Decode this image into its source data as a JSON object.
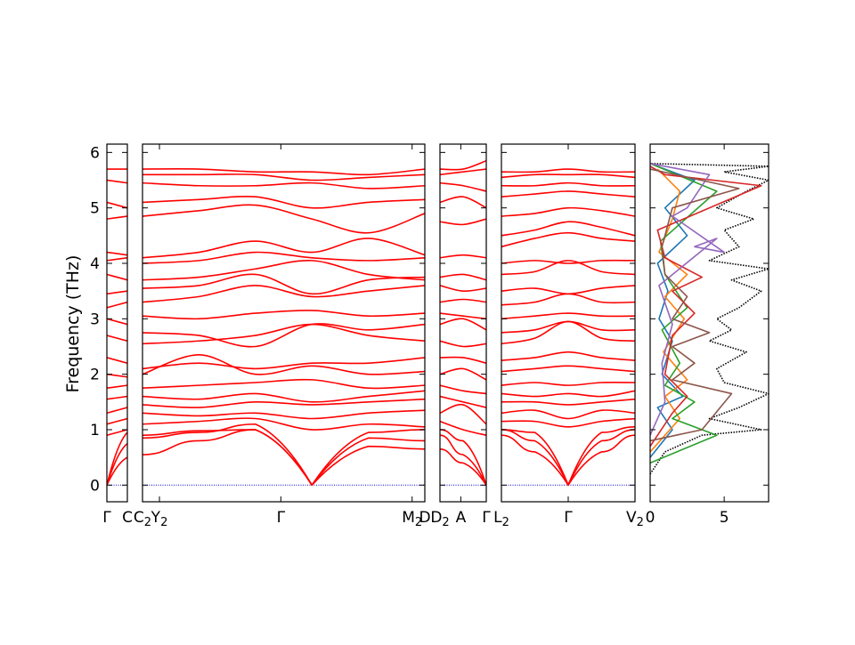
{
  "chart_data": {
    "type": "line",
    "ylabel": "Frequency (THz)",
    "ylim": [
      -0.3,
      6.15
    ],
    "yticks": [
      0,
      1,
      2,
      3,
      4,
      5,
      6
    ],
    "band_color": "#ff0000",
    "zero_line_color": "#0000cc",
    "segments": [
      {
        "name": "Γ–C",
        "start_label": "Γ",
        "end_label": "C",
        "length": 1.0
      },
      {
        "name": "C2–Y2–Γ–M2–D",
        "start_label": "C2",
        "end_label": "D",
        "length": 13.9,
        "inner_ticks": [
          {
            "label": "Y2",
            "pos": 0.06
          },
          {
            "label": "Γ",
            "pos": 0.49
          },
          {
            "label": "M2",
            "pos": 0.955
          }
        ]
      },
      {
        "name": "D2–A–Γ",
        "start_label": "D2",
        "end_label": "Γ",
        "length": 2.25,
        "inner_ticks": [
          {
            "label": "A",
            "pos": 0.45
          }
        ]
      },
      {
        "name": "L2–Γ–V2",
        "start_label": "L2",
        "end_label": "V2",
        "length": 6.5,
        "inner_ticks": [
          {
            "label": "Γ",
            "pos": 0.5
          }
        ]
      }
    ],
    "x_tick_labels": [
      "Γ",
      "C",
      "C2",
      "Y2",
      "Γ",
      "M2",
      "D",
      "D2",
      "A",
      "Γ",
      "L2",
      "Γ",
      "V2"
    ],
    "bands": [
      [
        {
          "y0": 0.0,
          "y1": 0.5
        },
        {
          "y0": 0.0,
          "y1": 0.75
        },
        {
          "y0": 0.0,
          "y1": 0.95
        },
        {
          "y0": 0.9,
          "y1": 1.0
        },
        {
          "y0": 1.1,
          "y1": 1.2
        },
        {
          "y0": 1.3,
          "y1": 1.4
        },
        {
          "y0": 1.55,
          "y1": 1.6
        },
        {
          "y0": 1.75,
          "y1": 1.8
        },
        {
          "y0": 2.0,
          "y1": 1.95
        },
        {
          "y0": 2.3,
          "y1": 2.2
        },
        {
          "y0": 2.7,
          "y1": 2.6
        },
        {
          "y0": 3.0,
          "y1": 2.9
        },
        {
          "y0": 3.2,
          "y1": 3.3
        },
        {
          "y0": 3.45,
          "y1": 3.5
        },
        {
          "y0": 3.8,
          "y1": 3.7
        },
        {
          "y0": 4.05,
          "y1": 4.1
        },
        {
          "y0": 4.2,
          "y1": 4.15
        },
        {
          "y0": 4.8,
          "y1": 4.85
        },
        {
          "y0": 5.1,
          "y1": 5.0
        },
        {
          "y0": 5.5,
          "y1": 5.45
        },
        {
          "y0": 5.7,
          "y1": 5.7
        }
      ],
      [
        {
          "v": [
            0.9,
            0.98,
            1.0,
            0.0,
            0.7,
            0.65
          ]
        },
        {
          "v": [
            0.85,
            0.95,
            1.1,
            0.0,
            0.85,
            0.8
          ]
        },
        {
          "v": [
            0.55,
            0.8,
            1.0,
            0.0,
            0.95,
            1.0
          ]
        },
        {
          "v": [
            1.1,
            1.15,
            1.2,
            1.0,
            1.1,
            1.05
          ]
        },
        {
          "v": [
            1.3,
            1.25,
            1.3,
            1.2,
            1.3,
            1.35
          ]
        },
        {
          "v": [
            1.45,
            1.4,
            1.5,
            1.45,
            1.5,
            1.55
          ]
        },
        {
          "v": [
            1.6,
            1.55,
            1.65,
            1.5,
            1.6,
            1.7
          ]
        },
        {
          "v": [
            1.75,
            1.8,
            1.85,
            1.9,
            1.75,
            1.8
          ]
        },
        {
          "v": [
            2.0,
            2.35,
            2.0,
            2.15,
            2.0,
            2.05
          ]
        },
        {
          "v": [
            2.1,
            2.2,
            2.1,
            2.2,
            2.2,
            2.3
          ]
        },
        {
          "v": [
            2.55,
            2.6,
            2.7,
            2.9,
            2.7,
            2.6
          ]
        },
        {
          "v": [
            2.75,
            2.7,
            2.5,
            2.9,
            2.8,
            2.9
          ]
        },
        {
          "v": [
            3.05,
            3.0,
            3.1,
            3.15,
            3.05,
            3.1
          ]
        },
        {
          "v": [
            3.3,
            3.4,
            3.6,
            3.4,
            3.5,
            3.6
          ]
        },
        {
          "v": [
            3.55,
            3.6,
            3.8,
            3.45,
            3.7,
            3.75
          ]
        },
        {
          "v": [
            3.7,
            3.75,
            3.9,
            4.05,
            3.8,
            3.7
          ]
        },
        {
          "v": [
            4.0,
            4.05,
            4.2,
            4.1,
            4.05,
            4.1
          ]
        },
        {
          "v": [
            4.1,
            4.2,
            4.4,
            4.2,
            4.45,
            4.15
          ]
        },
        {
          "v": [
            4.85,
            4.95,
            5.05,
            4.8,
            4.55,
            4.9
          ]
        },
        {
          "v": [
            5.1,
            5.15,
            5.2,
            5.0,
            5.1,
            5.15
          ]
        },
        {
          "v": [
            5.45,
            5.4,
            5.4,
            5.45,
            5.35,
            5.4
          ]
        },
        {
          "v": [
            5.6,
            5.6,
            5.6,
            5.5,
            5.55,
            5.6
          ]
        },
        {
          "v": [
            5.7,
            5.7,
            5.65,
            5.65,
            5.6,
            5.7
          ]
        }
      ],
      [
        {
          "v": [
            0.65,
            0.4,
            0.0
          ]
        },
        {
          "v": [
            0.9,
            0.55,
            0.0
          ]
        },
        {
          "v": [
            1.0,
            0.8,
            0.0
          ]
        },
        {
          "v": [
            1.15,
            1.0,
            0.9
          ]
        },
        {
          "v": [
            1.3,
            1.45,
            1.1
          ]
        },
        {
          "v": [
            1.6,
            1.5,
            1.4
          ]
        },
        {
          "v": [
            1.8,
            1.7,
            1.65
          ]
        },
        {
          "v": [
            2.0,
            2.1,
            1.9
          ]
        },
        {
          "v": [
            2.3,
            2.3,
            2.2
          ]
        },
        {
          "v": [
            2.6,
            2.5,
            2.55
          ]
        },
        {
          "v": [
            2.9,
            3.0,
            2.8
          ]
        },
        {
          "v": [
            3.1,
            3.05,
            3.0
          ]
        },
        {
          "v": [
            3.3,
            3.35,
            3.3
          ]
        },
        {
          "v": [
            3.6,
            3.5,
            3.55
          ]
        },
        {
          "v": [
            3.75,
            3.8,
            3.7
          ]
        },
        {
          "v": [
            4.1,
            4.15,
            4.1
          ]
        },
        {
          "v": [
            4.75,
            4.7,
            4.8
          ]
        },
        {
          "v": [
            5.1,
            5.2,
            5.0
          ]
        },
        {
          "v": [
            5.45,
            5.4,
            5.3
          ]
        },
        {
          "v": [
            5.6,
            5.65,
            5.7
          ]
        },
        {
          "v": [
            5.7,
            5.7,
            5.85
          ]
        }
      ],
      [
        {
          "v": [
            0.9,
            0.6,
            0.0,
            0.6,
            0.9
          ]
        },
        {
          "v": [
            1.0,
            0.8,
            0.0,
            0.8,
            1.0
          ]
        },
        {
          "v": [
            1.0,
            0.95,
            0.0,
            0.95,
            1.05
          ]
        },
        {
          "v": [
            1.15,
            1.15,
            1.05,
            1.15,
            1.2
          ]
        },
        {
          "v": [
            1.3,
            1.35,
            1.2,
            1.35,
            1.3
          ]
        },
        {
          "v": [
            1.5,
            1.5,
            1.45,
            1.5,
            1.55
          ]
        },
        {
          "v": [
            1.65,
            1.6,
            1.65,
            1.6,
            1.7
          ]
        },
        {
          "v": [
            1.8,
            1.85,
            1.8,
            1.85,
            1.85
          ]
        },
        {
          "v": [
            2.05,
            2.1,
            2.15,
            2.1,
            2.05
          ]
        },
        {
          "v": [
            2.25,
            2.3,
            2.4,
            2.3,
            2.25
          ]
        },
        {
          "v": [
            2.55,
            2.65,
            2.95,
            2.65,
            2.6
          ]
        },
        {
          "v": [
            2.75,
            2.8,
            2.95,
            2.8,
            2.8
          ]
        },
        {
          "v": [
            3.0,
            3.05,
            3.1,
            3.05,
            3.05
          ]
        },
        {
          "v": [
            3.25,
            3.3,
            3.45,
            3.3,
            3.3
          ]
        },
        {
          "v": [
            3.5,
            3.55,
            3.45,
            3.55,
            3.6
          ]
        },
        {
          "v": [
            3.8,
            3.85,
            4.05,
            3.85,
            3.8
          ]
        },
        {
          "v": [
            4.0,
            4.05,
            4.0,
            4.05,
            4.05
          ]
        },
        {
          "v": [
            4.3,
            4.45,
            4.55,
            4.45,
            4.4
          ]
        },
        {
          "v": [
            4.5,
            4.6,
            4.75,
            4.65,
            4.5
          ]
        },
        {
          "v": [
            4.85,
            4.9,
            5.0,
            4.95,
            4.85
          ]
        },
        {
          "v": [
            5.2,
            5.25,
            5.3,
            5.25,
            5.2
          ]
        },
        {
          "v": [
            5.4,
            5.4,
            5.45,
            5.4,
            5.4
          ]
        },
        {
          "v": [
            5.55,
            5.6,
            5.6,
            5.6,
            5.55
          ]
        },
        {
          "v": [
            5.65,
            5.65,
            5.7,
            5.65,
            5.65
          ]
        }
      ]
    ],
    "dos_panel": {
      "xticks": [
        0,
        5
      ],
      "xlim": [
        0,
        8
      ],
      "total": {
        "name": "total",
        "color": "#000000",
        "style": "dotted",
        "points": [
          [
            0.0,
            0.2
          ],
          [
            1.0,
            0.6
          ],
          [
            3.5,
            0.9
          ],
          [
            7.5,
            1.0
          ],
          [
            4.0,
            1.2
          ],
          [
            6.0,
            1.4
          ],
          [
            8.0,
            1.65
          ],
          [
            5.0,
            1.85
          ],
          [
            4.5,
            2.1
          ],
          [
            6.5,
            2.4
          ],
          [
            4.0,
            2.6
          ],
          [
            5.5,
            2.8
          ],
          [
            4.5,
            3.0
          ],
          [
            6.0,
            3.2
          ],
          [
            7.5,
            3.5
          ],
          [
            5.5,
            3.7
          ],
          [
            8.0,
            3.9
          ],
          [
            4.0,
            4.05
          ],
          [
            6.0,
            4.3
          ],
          [
            5.0,
            4.6
          ],
          [
            7.0,
            4.8
          ],
          [
            4.5,
            5.0
          ],
          [
            6.5,
            5.3
          ],
          [
            8.0,
            5.5
          ],
          [
            5.0,
            5.65
          ],
          [
            8.0,
            5.75
          ],
          [
            0.0,
            5.8
          ]
        ]
      },
      "series": [
        {
          "color": "#1f77b4",
          "points": [
            [
              0,
              0.5
            ],
            [
              1.5,
              1.0
            ],
            [
              0.5,
              1.4
            ],
            [
              2.2,
              1.6
            ],
            [
              0.8,
              2.0
            ],
            [
              1.5,
              2.6
            ],
            [
              0.6,
              3.0
            ],
            [
              1.2,
              3.5
            ],
            [
              0.5,
              4.0
            ],
            [
              2.5,
              4.5
            ],
            [
              1.0,
              5.0
            ],
            [
              3.0,
              5.5
            ],
            [
              0,
              5.8
            ]
          ]
        },
        {
          "color": "#ff7f0e",
          "points": [
            [
              0,
              0.6
            ],
            [
              2.0,
              1.2
            ],
            [
              1.0,
              1.6
            ],
            [
              2.5,
              1.9
            ],
            [
              0.9,
              2.4
            ],
            [
              2.3,
              3.0
            ],
            [
              1.0,
              3.4
            ],
            [
              2.5,
              3.8
            ],
            [
              0.6,
              4.2
            ],
            [
              1.5,
              4.8
            ],
            [
              2.0,
              5.3
            ],
            [
              0.5,
              5.7
            ]
          ]
        },
        {
          "color": "#2ca02c",
          "points": [
            [
              0,
              0.4
            ],
            [
              4.5,
              0.9
            ],
            [
              1.5,
              1.2
            ],
            [
              3.0,
              1.5
            ],
            [
              1.0,
              1.8
            ],
            [
              2.0,
              2.2
            ],
            [
              0.8,
              2.8
            ],
            [
              2.5,
              3.2
            ],
            [
              1.0,
              3.8
            ],
            [
              0.7,
              4.4
            ],
            [
              4.5,
              5.3
            ],
            [
              0,
              5.8
            ]
          ]
        },
        {
          "color": "#d62728",
          "points": [
            [
              0,
              0.7
            ],
            [
              1.5,
              1.3
            ],
            [
              2.5,
              1.6
            ],
            [
              1.0,
              2.0
            ],
            [
              1.5,
              2.7
            ],
            [
              3.0,
              3.1
            ],
            [
              1.5,
              3.5
            ],
            [
              3.5,
              3.75
            ],
            [
              1.0,
              4.1
            ],
            [
              0.5,
              4.6
            ],
            [
              7.5,
              5.4
            ],
            [
              1.0,
              5.6
            ],
            [
              0,
              5.75
            ]
          ]
        },
        {
          "color": "#9467bd",
          "points": [
            [
              0,
              0.9
            ],
            [
              1.0,
              1.5
            ],
            [
              0.8,
              2.2
            ],
            [
              1.5,
              2.9
            ],
            [
              0.6,
              3.6
            ],
            [
              4.5,
              4.45
            ],
            [
              3.0,
              4.3
            ],
            [
              5.0,
              4.2
            ],
            [
              1.5,
              4.85
            ],
            [
              2.5,
              5.0
            ],
            [
              4.0,
              5.6
            ],
            [
              0,
              5.8
            ]
          ]
        },
        {
          "color": "#8c564b",
          "points": [
            [
              0,
              0.8
            ],
            [
              3.5,
              1.0
            ],
            [
              5.5,
              1.65
            ],
            [
              1.5,
              1.9
            ],
            [
              3.0,
              2.2
            ],
            [
              1.5,
              2.5
            ],
            [
              4.0,
              2.75
            ],
            [
              1.5,
              3.0
            ],
            [
              2.5,
              3.4
            ],
            [
              1.0,
              3.8
            ],
            [
              0.8,
              4.3
            ],
            [
              1.5,
              5.0
            ],
            [
              6.0,
              5.35
            ],
            [
              0,
              5.7
            ]
          ]
        }
      ]
    }
  }
}
